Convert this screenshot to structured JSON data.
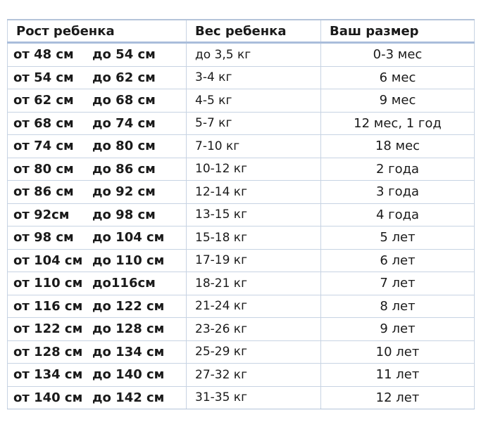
{
  "table": {
    "headers": [
      "Рост ребенка",
      "Вес ребенка",
      "Ваш размер"
    ],
    "rows": [
      {
        "from": "от 48 см",
        "to": "до 54 см",
        "weight": "до 3,5 кг",
        "size": "0-3 мес"
      },
      {
        "from": "от 54 см",
        "to": "до 62 см",
        "weight": "3-4 кг",
        "size": "6 мес"
      },
      {
        "from": "от 62 см",
        "to": "до 68 см",
        "weight": "4-5 кг",
        "size": "9 мес"
      },
      {
        "from": "от 68 см",
        "to": "до 74 см",
        "weight": "5-7 кг",
        "size": "12 мес, 1 год"
      },
      {
        "from": "от 74 см",
        "to": "до 80 см",
        "weight": "7-10 кг",
        "size": "18 мес"
      },
      {
        "from": "от 80 см",
        "to": "до 86 см",
        "weight": "10-12 кг",
        "size": "2 года"
      },
      {
        "from": "от 86 см",
        "to": "до 92 см",
        "weight": "12-14 кг",
        "size": "3 года"
      },
      {
        "from": "от 92см",
        "to": "до 98 см",
        "weight": "13-15 кг",
        "size": "4 года"
      },
      {
        "from": "от 98 см",
        "to": "до 104 см",
        "weight": "15-18 кг",
        "size": "5 лет"
      },
      {
        "from": "от 104 см",
        "to": "до 110 см",
        "weight": "17-19 кг",
        "size": "6 лет"
      },
      {
        "from": "от 110 см",
        "to": "до116см",
        "weight": "18-21 кг",
        "size": "7 лет"
      },
      {
        "from": "от 116 см",
        "to": "до 122 см",
        "weight": "21-24 кг",
        "size": "8 лет"
      },
      {
        "from": "от 122 см",
        "to": "до 128 см",
        "weight": "23-26 кг",
        "size": "9 лет"
      },
      {
        "from": "от 128 см",
        "to": "до 134 см",
        "weight": "25-29 кг",
        "size": "10 лет"
      },
      {
        "from": "от 134 см",
        "to": "до 140 см",
        "weight": "27-32 кг",
        "size": "11 лет"
      },
      {
        "from": "от 140 см",
        "to": "до 142 см",
        "weight": "31-35 кг",
        "size": "12 лет"
      }
    ]
  },
  "colors": {
    "grid_line": "#c7d3e3",
    "header_rule": "#a9bddb",
    "text": "#1a1a1a"
  }
}
